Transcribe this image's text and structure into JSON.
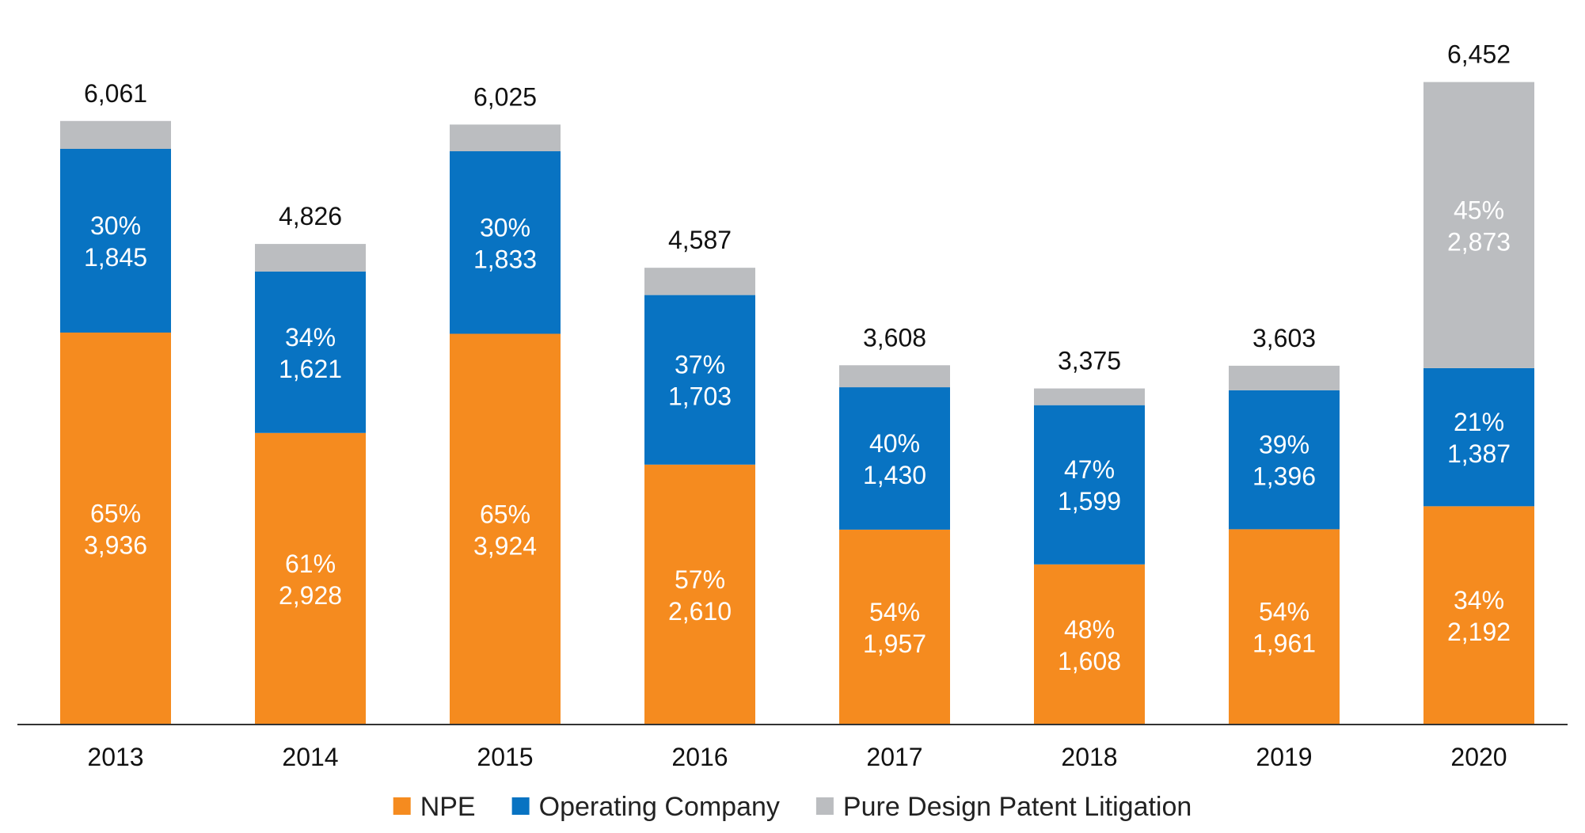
{
  "chart_data": {
    "type": "bar",
    "stacked": true,
    "title": "",
    "xlabel": "",
    "ylabel": "",
    "ylim": [
      0,
      6600
    ],
    "grid": false,
    "legend_position": "bottom-center",
    "categories": [
      "2013",
      "2014",
      "2015",
      "2016",
      "2017",
      "2018",
      "2019",
      "2020"
    ],
    "totals": [
      6061,
      4826,
      6025,
      4587,
      3608,
      3375,
      3603,
      6452
    ],
    "total_labels": [
      "6,061",
      "4,826",
      "6,025",
      "4,587",
      "3,608",
      "3,375",
      "3,603",
      "6,452"
    ],
    "series": [
      {
        "name": "NPE",
        "color": "#F58B1F",
        "values": [
          3936,
          2928,
          3924,
          2610,
          1957,
          1608,
          1961,
          2192
        ],
        "value_labels": [
          "3,936",
          "2,928",
          "3,924",
          "2,610",
          "1,957",
          "1,608",
          "1,961",
          "2,192"
        ],
        "percent_labels": [
          "65%",
          "61%",
          "65%",
          "57%",
          "54%",
          "48%",
          "54%",
          "34%"
        ]
      },
      {
        "name": "Operating Company",
        "color": "#0873C2",
        "values": [
          1845,
          1621,
          1833,
          1703,
          1430,
          1599,
          1396,
          1387
        ],
        "value_labels": [
          "1,845",
          "1,621",
          "1,833",
          "1,703",
          "1,430",
          "1,599",
          "1,396",
          "1,387"
        ],
        "percent_labels": [
          "30%",
          "34%",
          "30%",
          "37%",
          "40%",
          "47%",
          "39%",
          "21%"
        ]
      },
      {
        "name": "Pure Design Patent Litigation",
        "color": "#BBBDC0",
        "values": [
          280,
          277,
          268,
          274,
          221,
          168,
          246,
          2873
        ],
        "value_labels": [
          "",
          "",
          "",
          "",
          "",
          "",
          "",
          "2,873"
        ],
        "percent_labels": [
          "",
          "",
          "",
          "",
          "",
          "",
          "",
          "45%"
        ]
      }
    ]
  }
}
